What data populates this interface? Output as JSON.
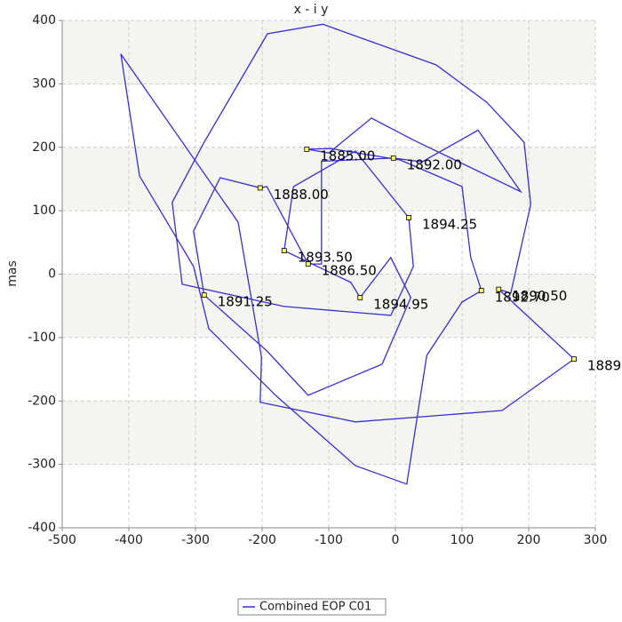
{
  "chart_data": {
    "type": "line",
    "title": "x - i y",
    "y_label": "mas",
    "xlim": [
      -500,
      300
    ],
    "ylim": [
      -400,
      400
    ],
    "xticks": [
      -500,
      -400,
      -300,
      -200,
      -100,
      0,
      100,
      200,
      300
    ],
    "yticks": [
      -400,
      -300,
      -200,
      -100,
      0,
      100,
      200,
      300,
      400
    ],
    "grid": true,
    "legend": "bottom",
    "marker_color": "#ffff66",
    "series": [
      {
        "name": "Combined EOP C01",
        "color": "#3a2ecf",
        "x": [
          -133,
          -100,
          -36,
          28,
          188,
          124,
          40,
          -3,
          -111,
          -111,
          -131,
          -193,
          -203,
          -263,
          -303,
          -287,
          -193,
          -131,
          -20,
          23,
          -7,
          -53,
          -67,
          -167,
          -153,
          -60,
          20,
          27,
          -7,
          -167,
          -320,
          -335,
          -287,
          -192,
          -109,
          61,
          137,
          193,
          203,
          173,
          155,
          268,
          160,
          -60,
          -203,
          -201,
          -236,
          -412,
          -384,
          -303,
          -280,
          -180,
          -60,
          17,
          47,
          100,
          129,
          113,
          100,
          7,
          -97,
          -133
        ],
        "y": [
          197,
          191,
          246,
          211,
          130,
          227,
          177,
          183,
          178,
          16,
          16,
          138,
          136,
          152,
          68,
          -33,
          -121,
          -191,
          -142,
          -37,
          26,
          -37,
          -13,
          37,
          138,
          194,
          89,
          12,
          -65,
          -51,
          -16,
          113,
          208,
          379,
          394,
          330,
          271,
          208,
          110,
          -30,
          -24,
          -134,
          -215,
          -233,
          -202,
          -131,
          82,
          347,
          155,
          12,
          -86,
          -191,
          -302,
          -331,
          -128,
          -44,
          -26,
          26,
          138,
          180,
          198,
          197
        ]
      }
    ],
    "annotations": [
      {
        "text": "1885.00",
        "x": -133,
        "y": 197
      },
      {
        "text": "1892.00",
        "x": -3,
        "y": 183
      },
      {
        "text": "1888.00",
        "x": -203,
        "y": 136
      },
      {
        "text": "1894.25",
        "x": 20,
        "y": 89
      },
      {
        "text": "1893.50",
        "x": -167,
        "y": 37
      },
      {
        "text": "1886.50",
        "x": -131,
        "y": 16
      },
      {
        "text": "1891.25",
        "x": -287,
        "y": -33
      },
      {
        "text": "1894.95",
        "x": -53,
        "y": -37
      },
      {
        "text": "1892.70",
        "x": 129,
        "y": -26
      },
      {
        "text": "1890.50",
        "x": 155,
        "y": -24
      },
      {
        "text": "1889",
        "x": 268,
        "y": -134
      }
    ]
  }
}
